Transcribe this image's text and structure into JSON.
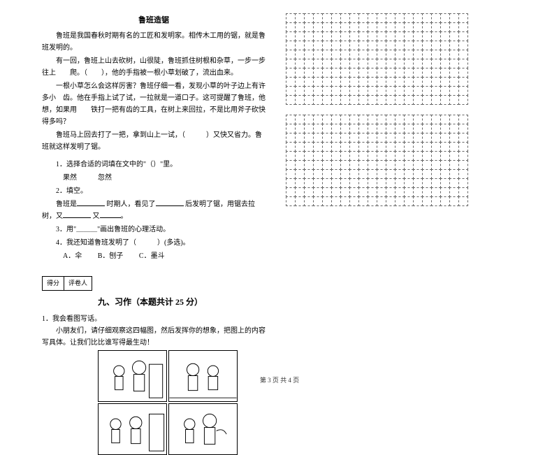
{
  "passage": {
    "title": "鲁班造锯",
    "p1": "鲁班是我国春秋时期有名的工匠和发明家。相传木工用的锯，就是鲁班发明的。",
    "p2": "有一回，鲁班上山去砍树，山很陡，鲁班抓住树根和杂草，一步一步往上　　爬。（　　），他的手指被一根小草划破了，流出血来。",
    "p3": "一根小草怎么会这样厉害？鲁班仔细一看，发现小草的叶子边上有许多小　齿。他在手指上试了试，一拉就是一道口子。这可提醒了鲁班，他想，如果用　　铁打一把有齿的工具，在树上来回拉，不是比用斧子砍快得多吗？",
    "p4": "鲁班马上回去打了一把，拿到山上一试，（　　　）又快又省力。鲁班就这样发明了锯。"
  },
  "questions": {
    "q1": "1．选择合适的词填在文中的\"（）\"里。",
    "q1_choices": "果然　　　忽然",
    "q2": "2．填空。",
    "q2_text_a": "鲁班是",
    "q2_text_b": "时期人，看见了",
    "q2_text_c": "后发明了锯，用锯去拉树，又",
    "q2_text_d": "又",
    "q2_text_e": "。",
    "q3": "3．用\"＿＿＿\"画出鲁班的心理活动。",
    "q4": "4．我还知道鲁班发明了（　　　）(多选)。",
    "q4_a": "A．伞",
    "q4_b": "B．刨子",
    "q4_c": "C．墨斗"
  },
  "score": {
    "label1": "得分",
    "label2": "评卷人"
  },
  "section9": {
    "title": "九、习作（本题共计 25 分）",
    "q1": "1．我会看图写话。",
    "q1_text": "小朋友们，请仔细观察这四幅图，然后发挥你的想象，把图上的内容写具体。让我们比比谁写得最生动！"
  },
  "grid": {
    "cols": 20,
    "rows_block1": 10,
    "rows_block2": 10
  },
  "footer": "第 3 页  共 4 页",
  "colors": {
    "text": "#000000",
    "bg": "#ffffff",
    "grid_border": "#666666"
  }
}
